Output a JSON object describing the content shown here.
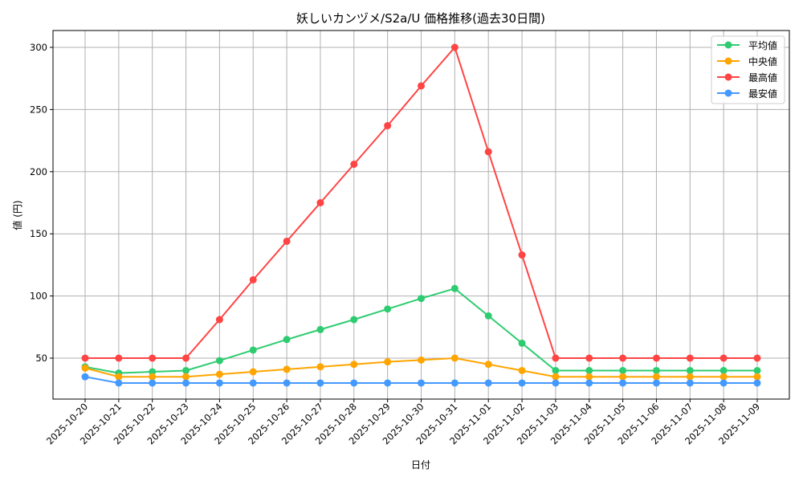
{
  "chart_data": {
    "type": "line",
    "title": "妖しいカンヅメ/S2a/U 価格推移(過去30日間)",
    "xlabel": "日付",
    "ylabel": "値 (円)",
    "ylim": [
      16,
      313
    ],
    "yticks": [
      50,
      100,
      150,
      200,
      250,
      300
    ],
    "grid": true,
    "legend_position": "top-right",
    "categories": [
      "2025-10-20",
      "2025-10-21",
      "2025-10-22",
      "2025-10-23",
      "2025-10-24",
      "2025-10-25",
      "2025-10-26",
      "2025-10-27",
      "2025-10-28",
      "2025-10-29",
      "2025-10-30",
      "2025-10-31",
      "2025-11-01",
      "2025-11-02",
      "2025-11-03",
      "2025-11-04",
      "2025-11-05",
      "2025-11-06",
      "2025-11-07",
      "2025-11-08",
      "2025-11-09"
    ],
    "series": [
      {
        "name": "平均値",
        "color": "#2ecc71",
        "values": [
          43,
          38,
          39,
          40,
          48,
          56.5,
          65,
          73,
          81,
          89.5,
          98,
          106,
          84,
          62,
          40,
          40,
          40,
          40,
          40,
          40,
          40
        ]
      },
      {
        "name": "中央値",
        "color": "#ffa500",
        "values": [
          42,
          35,
          35,
          35,
          37,
          39,
          41,
          43,
          45,
          47,
          48.5,
          50,
          45,
          40,
          35,
          35,
          35,
          35,
          35,
          35,
          35
        ]
      },
      {
        "name": "最高値",
        "color": "#ff4444",
        "values": [
          50,
          50,
          50,
          50,
          81,
          113,
          144,
          175,
          206,
          237,
          269,
          300,
          216,
          133,
          50,
          50,
          50,
          50,
          50,
          50,
          50
        ]
      },
      {
        "name": "最安値",
        "color": "#4499ff",
        "values": [
          35,
          30,
          30,
          30,
          30,
          30,
          30,
          30,
          30,
          30,
          30,
          30,
          30,
          30,
          30,
          30,
          30,
          30,
          30,
          30,
          30
        ]
      }
    ]
  }
}
